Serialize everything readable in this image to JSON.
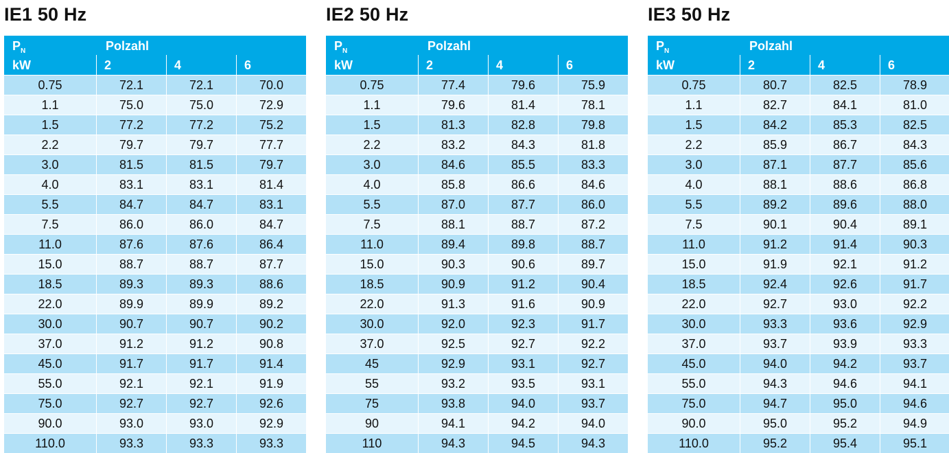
{
  "header": {
    "pn_main": "P",
    "pn_sub": "N",
    "unit": "kW",
    "polzahl": "Polzahl",
    "poles": [
      "2",
      "4",
      "6"
    ]
  },
  "tables": [
    {
      "title": "IE1 50 Hz",
      "rows": [
        [
          "0.75",
          "72.1",
          "72.1",
          "70.0"
        ],
        [
          "1.1",
          "75.0",
          "75.0",
          "72.9"
        ],
        [
          "1.5",
          "77.2",
          "77.2",
          "75.2"
        ],
        [
          "2.2",
          "79.7",
          "79.7",
          "77.7"
        ],
        [
          "3.0",
          "81.5",
          "81.5",
          "79.7"
        ],
        [
          "4.0",
          "83.1",
          "83.1",
          "81.4"
        ],
        [
          "5.5",
          "84.7",
          "84.7",
          "83.1"
        ],
        [
          "7.5",
          "86.0",
          "86.0",
          "84.7"
        ],
        [
          "11.0",
          "87.6",
          "87.6",
          "86.4"
        ],
        [
          "15.0",
          "88.7",
          "88.7",
          "87.7"
        ],
        [
          "18.5",
          "89.3",
          "89.3",
          "88.6"
        ],
        [
          "22.0",
          "89.9",
          "89.9",
          "89.2"
        ],
        [
          "30.0",
          "90.7",
          "90.7",
          "90.2"
        ],
        [
          "37.0",
          "91.2",
          "91.2",
          "90.8"
        ],
        [
          "45.0",
          "91.7",
          "91.7",
          "91.4"
        ],
        [
          "55.0",
          "92.1",
          "92.1",
          "91.9"
        ],
        [
          "75.0",
          "92.7",
          "92.7",
          "92.6"
        ],
        [
          "90.0",
          "93.0",
          "93.0",
          "92.9"
        ],
        [
          "110.0",
          "93.3",
          "93.3",
          "93.3"
        ]
      ]
    },
    {
      "title": "IE2 50 Hz",
      "rows": [
        [
          "0.75",
          "77.4",
          "79.6",
          "75.9"
        ],
        [
          "1.1",
          "79.6",
          "81.4",
          "78.1"
        ],
        [
          "1.5",
          "81.3",
          "82.8",
          "79.8"
        ],
        [
          "2.2",
          "83.2",
          "84.3",
          "81.8"
        ],
        [
          "3.0",
          "84.6",
          "85.5",
          "83.3"
        ],
        [
          "4.0",
          "85.8",
          "86.6",
          "84.6"
        ],
        [
          "5.5",
          "87.0",
          "87.7",
          "86.0"
        ],
        [
          "7.5",
          "88.1",
          "88.7",
          "87.2"
        ],
        [
          "11.0",
          "89.4",
          "89.8",
          "88.7"
        ],
        [
          "15.0",
          "90.3",
          "90.6",
          "89.7"
        ],
        [
          "18.5",
          "90.9",
          "91.2",
          "90.4"
        ],
        [
          "22.0",
          "91.3",
          "91.6",
          "90.9"
        ],
        [
          "30.0",
          "92.0",
          "92.3",
          "91.7"
        ],
        [
          "37.0",
          "92.5",
          "92.7",
          "92.2"
        ],
        [
          "45",
          "92.9",
          "93.1",
          "92.7"
        ],
        [
          "55",
          "93.2",
          "93.5",
          "93.1"
        ],
        [
          "75",
          "93.8",
          "94.0",
          "93.7"
        ],
        [
          "90",
          "94.1",
          "94.2",
          "94.0"
        ],
        [
          "110",
          "94.3",
          "94.5",
          "94.3"
        ]
      ]
    },
    {
      "title": "IE3 50 Hz",
      "rows": [
        [
          "0.75",
          "80.7",
          "82.5",
          "78.9"
        ],
        [
          "1.1",
          "82.7",
          "84.1",
          "81.0"
        ],
        [
          "1.5",
          "84.2",
          "85.3",
          "82.5"
        ],
        [
          "2.2",
          "85.9",
          "86.7",
          "84.3"
        ],
        [
          "3.0",
          "87.1",
          "87.7",
          "85.6"
        ],
        [
          "4.0",
          "88.1",
          "88.6",
          "86.8"
        ],
        [
          "5.5",
          "89.2",
          "89.6",
          "88.0"
        ],
        [
          "7.5",
          "90.1",
          "90.4",
          "89.1"
        ],
        [
          "11.0",
          "91.2",
          "91.4",
          "90.3"
        ],
        [
          "15.0",
          "91.9",
          "92.1",
          "91.2"
        ],
        [
          "18.5",
          "92.4",
          "92.6",
          "91.7"
        ],
        [
          "22.0",
          "92.7",
          "93.0",
          "92.2"
        ],
        [
          "30.0",
          "93.3",
          "93.6",
          "92.9"
        ],
        [
          "37.0",
          "93.7",
          "93.9",
          "93.3"
        ],
        [
          "45.0",
          "94.0",
          "94.2",
          "93.7"
        ],
        [
          "55.0",
          "94.3",
          "94.6",
          "94.1"
        ],
        [
          "75.0",
          "94.7",
          "95.0",
          "94.6"
        ],
        [
          "90.0",
          "95.0",
          "95.2",
          "94.9"
        ],
        [
          "110.0",
          "95.2",
          "95.4",
          "95.1"
        ]
      ]
    }
  ],
  "colors": {
    "header": "#00a9e6",
    "row_odd": "#b3e1f7",
    "row_even": "#e6f5fd"
  }
}
